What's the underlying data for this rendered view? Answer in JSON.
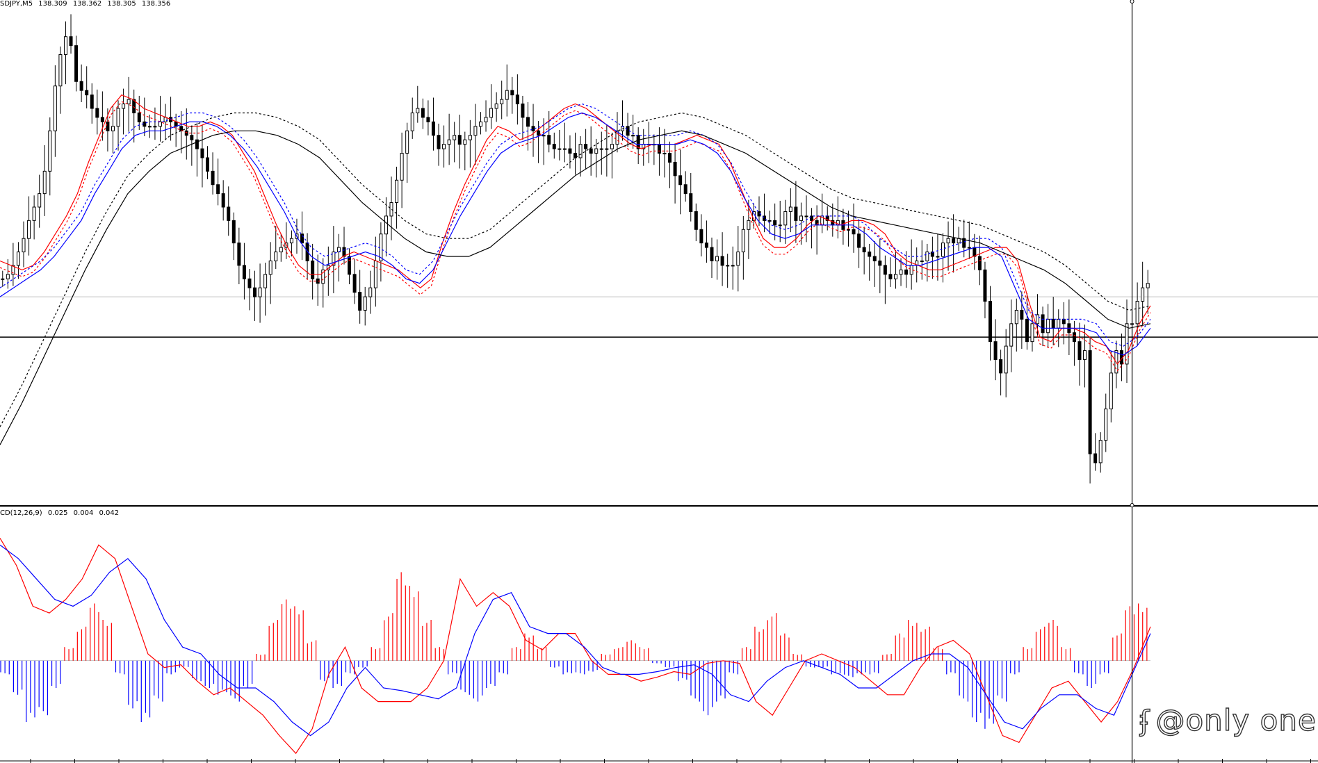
{
  "price_header": {
    "symbol_tf": "SDJPY,M5",
    "ohlc": [
      "138.309",
      "138.362",
      "138.305",
      "138.356"
    ]
  },
  "macd_header": {
    "label": "CD(12,26,9)",
    "values": [
      "0.025",
      "0.004",
      "0.042"
    ]
  },
  "watermark": {
    "icon": "weibo-icon",
    "text": "@only one"
  },
  "colors": {
    "background": "#ffffff",
    "candle": "#000000",
    "ma_red": "#ff0000",
    "ma_blue": "#0000ff",
    "ma_black": "#000000",
    "hist_pos": "#ff0000",
    "hist_neg": "#0000ff",
    "macd_line": "#ff0000",
    "signal_line": "#0000ff",
    "separator": "#000000",
    "hline_price": "#000000",
    "hline_grey": "#c0c0c0"
  },
  "chart_data": [
    {
      "type": "candlestick",
      "title": "SDJPY,M5",
      "ylim": [
        137.62,
        138.72
      ],
      "xlim": [
        0,
        260
      ],
      "price_levels": {
        "horizontal_line": 137.99,
        "grey_line": 138.08
      },
      "crosshair_index": 215,
      "series": [
        {
          "name": "close",
          "values": [
            138.12,
            138.13,
            138.15,
            138.18,
            138.21,
            138.25,
            138.28,
            138.31,
            138.36,
            138.45,
            138.55,
            138.62,
            138.66,
            138.64,
            138.56,
            138.54,
            138.53,
            138.5,
            138.48,
            138.47,
            138.45,
            138.46,
            138.5,
            138.51,
            138.52,
            138.49,
            138.47,
            138.46,
            138.46,
            138.46,
            138.47,
            138.48,
            138.47,
            138.46,
            138.45,
            138.44,
            138.43,
            138.41,
            138.39,
            138.36,
            138.33,
            138.31,
            138.28,
            138.25,
            138.2,
            138.15,
            138.12,
            138.1,
            138.08,
            138.1,
            138.13,
            138.16,
            138.18,
            138.19,
            138.2,
            138.21,
            138.22,
            138.2,
            138.16,
            138.12,
            138.11,
            138.14,
            138.15,
            138.18,
            138.19,
            138.17,
            138.13,
            138.09,
            138.05,
            138.08,
            138.1,
            138.16,
            138.22,
            138.26,
            138.29,
            138.34,
            138.4,
            138.45,
            138.49,
            138.5,
            138.48,
            138.47,
            138.44,
            138.41,
            138.42,
            138.43,
            138.44,
            138.42,
            138.43,
            138.44,
            138.46,
            138.47,
            138.48,
            138.5,
            138.51,
            138.52,
            138.54,
            138.53,
            138.51,
            138.48,
            138.46,
            138.45,
            138.44,
            138.44,
            138.42,
            138.41,
            138.41,
            138.41,
            138.4,
            138.39,
            138.42,
            138.41,
            138.4,
            138.41,
            138.41,
            138.41,
            138.42,
            138.45,
            138.46,
            138.44,
            138.44,
            138.41,
            138.42,
            138.42,
            138.42,
            138.4,
            138.4,
            138.38,
            138.35,
            138.33,
            138.31,
            138.27,
            138.23,
            138.2,
            138.19,
            138.16,
            138.17,
            138.15,
            138.15,
            138.15,
            138.18,
            138.23,
            138.25,
            138.27,
            138.26,
            138.25,
            138.25,
            138.24,
            138.24,
            138.27,
            138.28,
            138.25,
            138.26,
            138.26,
            138.25,
            138.24,
            138.26,
            138.25,
            138.24,
            138.25,
            138.23,
            138.23,
            138.22,
            138.19,
            138.18,
            138.17,
            138.16,
            138.15,
            138.13,
            138.12,
            138.13,
            138.14,
            138.13,
            138.15,
            138.16,
            138.16,
            138.18,
            138.17,
            138.17,
            138.2,
            138.21,
            138.2,
            138.21,
            138.19,
            138.19,
            138.17,
            138.14,
            138.07,
            137.98,
            137.94,
            137.91,
            137.97,
            138.02,
            138.05,
            138.03,
            137.98,
            138.02,
            138.04,
            138.0,
            138.03,
            138.01,
            138.03,
            138.02,
            138.0,
            137.98,
            137.94,
            137.96,
            137.73,
            137.71,
            137.76,
            137.83,
            137.91,
            137.96,
            137.93,
            138.02,
            138.02,
            138.07,
            138.1,
            138.11
          ]
        },
        {
          "name": "ma_red",
          "values": [
            138.16,
            138.15,
            138.14,
            138.15,
            138.18,
            138.22,
            138.26,
            138.31,
            138.38,
            138.44,
            138.5,
            138.53,
            138.52,
            138.5,
            138.49,
            138.48,
            138.47,
            138.46,
            138.46,
            138.47,
            138.46,
            138.44,
            138.4,
            138.36,
            138.3,
            138.24,
            138.19,
            138.15,
            138.13,
            138.13,
            138.15,
            138.17,
            138.18,
            138.17,
            138.16,
            138.15,
            138.14,
            138.12,
            138.1,
            138.12,
            138.2,
            138.27,
            138.33,
            138.38,
            138.43,
            138.46,
            138.45,
            138.43,
            138.44,
            138.46,
            138.48,
            138.5,
            138.51,
            138.5,
            138.48,
            138.46,
            138.44,
            138.42,
            138.41,
            138.42,
            138.42,
            138.42,
            138.43,
            138.44,
            138.43,
            138.42,
            138.38,
            138.32,
            138.26,
            138.21,
            138.19,
            138.19,
            138.21,
            138.24,
            138.26,
            138.25,
            138.24,
            138.25,
            138.25,
            138.24,
            138.22,
            138.18,
            138.16,
            138.15,
            138.14,
            138.14,
            138.15,
            138.16,
            138.17,
            138.18,
            138.19,
            138.19,
            138.16,
            138.07,
            137.99,
            137.98,
            138.01,
            138.01,
            138.0,
            137.98,
            137.97,
            137.93,
            137.96,
            138.02,
            138.06
          ]
        },
        {
          "name": "ma_blue",
          "values": [
            138.08,
            138.1,
            138.12,
            138.14,
            138.17,
            138.21,
            138.25,
            138.31,
            138.36,
            138.41,
            138.44,
            138.45,
            138.45,
            138.46,
            138.47,
            138.47,
            138.46,
            138.44,
            138.41,
            138.37,
            138.32,
            138.27,
            138.21,
            138.17,
            138.15,
            138.16,
            138.17,
            138.18,
            138.17,
            138.15,
            138.12,
            138.11,
            138.14,
            138.2,
            138.26,
            138.31,
            138.36,
            138.4,
            138.42,
            138.43,
            138.44,
            138.46,
            138.48,
            138.49,
            138.48,
            138.46,
            138.44,
            138.42,
            138.42,
            138.42,
            138.42,
            138.43,
            138.42,
            138.4,
            138.36,
            138.3,
            138.25,
            138.22,
            138.21,
            138.22,
            138.24,
            138.24,
            138.24,
            138.24,
            138.22,
            138.19,
            138.17,
            138.15,
            138.15,
            138.16,
            138.17,
            138.18,
            138.19,
            138.19,
            138.17,
            138.1,
            138.03,
            138.01,
            138.01,
            138.01,
            138.01,
            138.0,
            137.96,
            137.95,
            137.97,
            138.01
          ]
        },
        {
          "name": "ma_black",
          "values": [
            137.75,
            137.84,
            137.94,
            138.04,
            138.14,
            138.23,
            138.31,
            138.36,
            138.4,
            138.42,
            138.44,
            138.45,
            138.45,
            138.44,
            138.42,
            138.39,
            138.34,
            138.29,
            138.25,
            138.21,
            138.18,
            138.17,
            138.17,
            138.19,
            138.23,
            138.27,
            138.31,
            138.35,
            138.38,
            138.41,
            138.43,
            138.44,
            138.45,
            138.44,
            138.42,
            138.4,
            138.37,
            138.34,
            138.31,
            138.28,
            138.26,
            138.25,
            138.24,
            138.23,
            138.22,
            138.21,
            138.2,
            138.18,
            138.16,
            138.14,
            138.11,
            138.07,
            138.03,
            138.01,
            138.02
          ]
        }
      ]
    },
    {
      "type": "bar",
      "title": "CD(12,26,9)",
      "ylim": [
        -0.07,
        0.105
      ],
      "series": [
        {
          "name": "histogram",
          "values": [
            -0.01,
            -0.025,
            -0.045,
            -0.04,
            -0.02,
            0.01,
            0.025,
            0.042,
            0.03,
            -0.01,
            -0.035,
            -0.045,
            -0.03,
            -0.01,
            -0.005,
            -0.015,
            -0.02,
            -0.025,
            -0.03,
            -0.02,
            0.005,
            0.03,
            0.045,
            0.04,
            0.015,
            -0.015,
            -0.02,
            -0.01,
            -0.005,
            0.01,
            0.035,
            0.065,
            0.055,
            0.03,
            0.01,
            -0.01,
            -0.025,
            -0.03,
            -0.02,
            -0.01,
            0.01,
            0.02,
            0.01,
            -0.005,
            -0.01,
            -0.01,
            -0.008,
            0.005,
            0.01,
            0.015,
            0.01,
            -0.002,
            -0.005,
            -0.015,
            -0.03,
            -0.04,
            -0.03,
            -0.01,
            0.01,
            0.025,
            0.035,
            0.02,
            0.005,
            -0.005,
            -0.005,
            -0.01,
            -0.012,
            -0.01,
            -0.01,
            0.005,
            0.02,
            0.03,
            0.025,
            0.01,
            -0.01,
            -0.03,
            -0.045,
            -0.05,
            -0.03,
            -0.01,
            0.01,
            0.025,
            0.03,
            0.01,
            -0.01,
            -0.02,
            -0.01,
            0.02,
            0.04,
            0.042
          ]
        },
        {
          "name": "macd_line",
          "values": [
            0.09,
            0.07,
            0.04,
            0.035,
            0.045,
            0.06,
            0.085,
            0.075,
            0.04,
            0.005,
            -0.005,
            -0.003,
            -0.015,
            -0.025,
            -0.02,
            -0.03,
            -0.04,
            -0.055,
            -0.068,
            -0.05,
            -0.01,
            0.01,
            -0.02,
            -0.03,
            -0.03,
            -0.03,
            -0.02,
            0.0,
            0.06,
            0.04,
            0.05,
            0.04,
            0.015,
            0.008,
            0.02,
            0.02,
            0.0,
            -0.01,
            -0.01,
            -0.015,
            -0.012,
            -0.008,
            -0.01,
            -0.002,
            0.0,
            -0.002,
            -0.03,
            -0.04,
            -0.02,
            0.0,
            0.005,
            0.0,
            -0.005,
            -0.015,
            -0.025,
            -0.025,
            -0.005,
            0.01,
            0.015,
            0.005,
            -0.025,
            -0.055,
            -0.06,
            -0.04,
            -0.02,
            -0.015,
            -0.03,
            -0.045,
            -0.03,
            -0.005,
            0.025
          ]
        },
        {
          "name": "signal_line",
          "values": [
            0.085,
            0.075,
            0.06,
            0.045,
            0.04,
            0.048,
            0.065,
            0.075,
            0.06,
            0.03,
            0.01,
            0.005,
            -0.01,
            -0.02,
            -0.02,
            -0.03,
            -0.045,
            -0.055,
            -0.045,
            -0.02,
            -0.005,
            -0.02,
            -0.022,
            -0.025,
            -0.028,
            -0.02,
            0.02,
            0.045,
            0.05,
            0.025,
            0.02,
            0.02,
            0.01,
            -0.005,
            -0.01,
            -0.01,
            -0.008,
            -0.005,
            -0.003,
            -0.01,
            -0.025,
            -0.03,
            -0.015,
            -0.005,
            0.0,
            -0.005,
            -0.01,
            -0.02,
            -0.02,
            -0.01,
            0.0,
            0.005,
            0.005,
            -0.005,
            -0.025,
            -0.045,
            -0.05,
            -0.035,
            -0.025,
            -0.025,
            -0.035,
            -0.04,
            -0.01,
            0.02
          ]
        }
      ]
    }
  ]
}
